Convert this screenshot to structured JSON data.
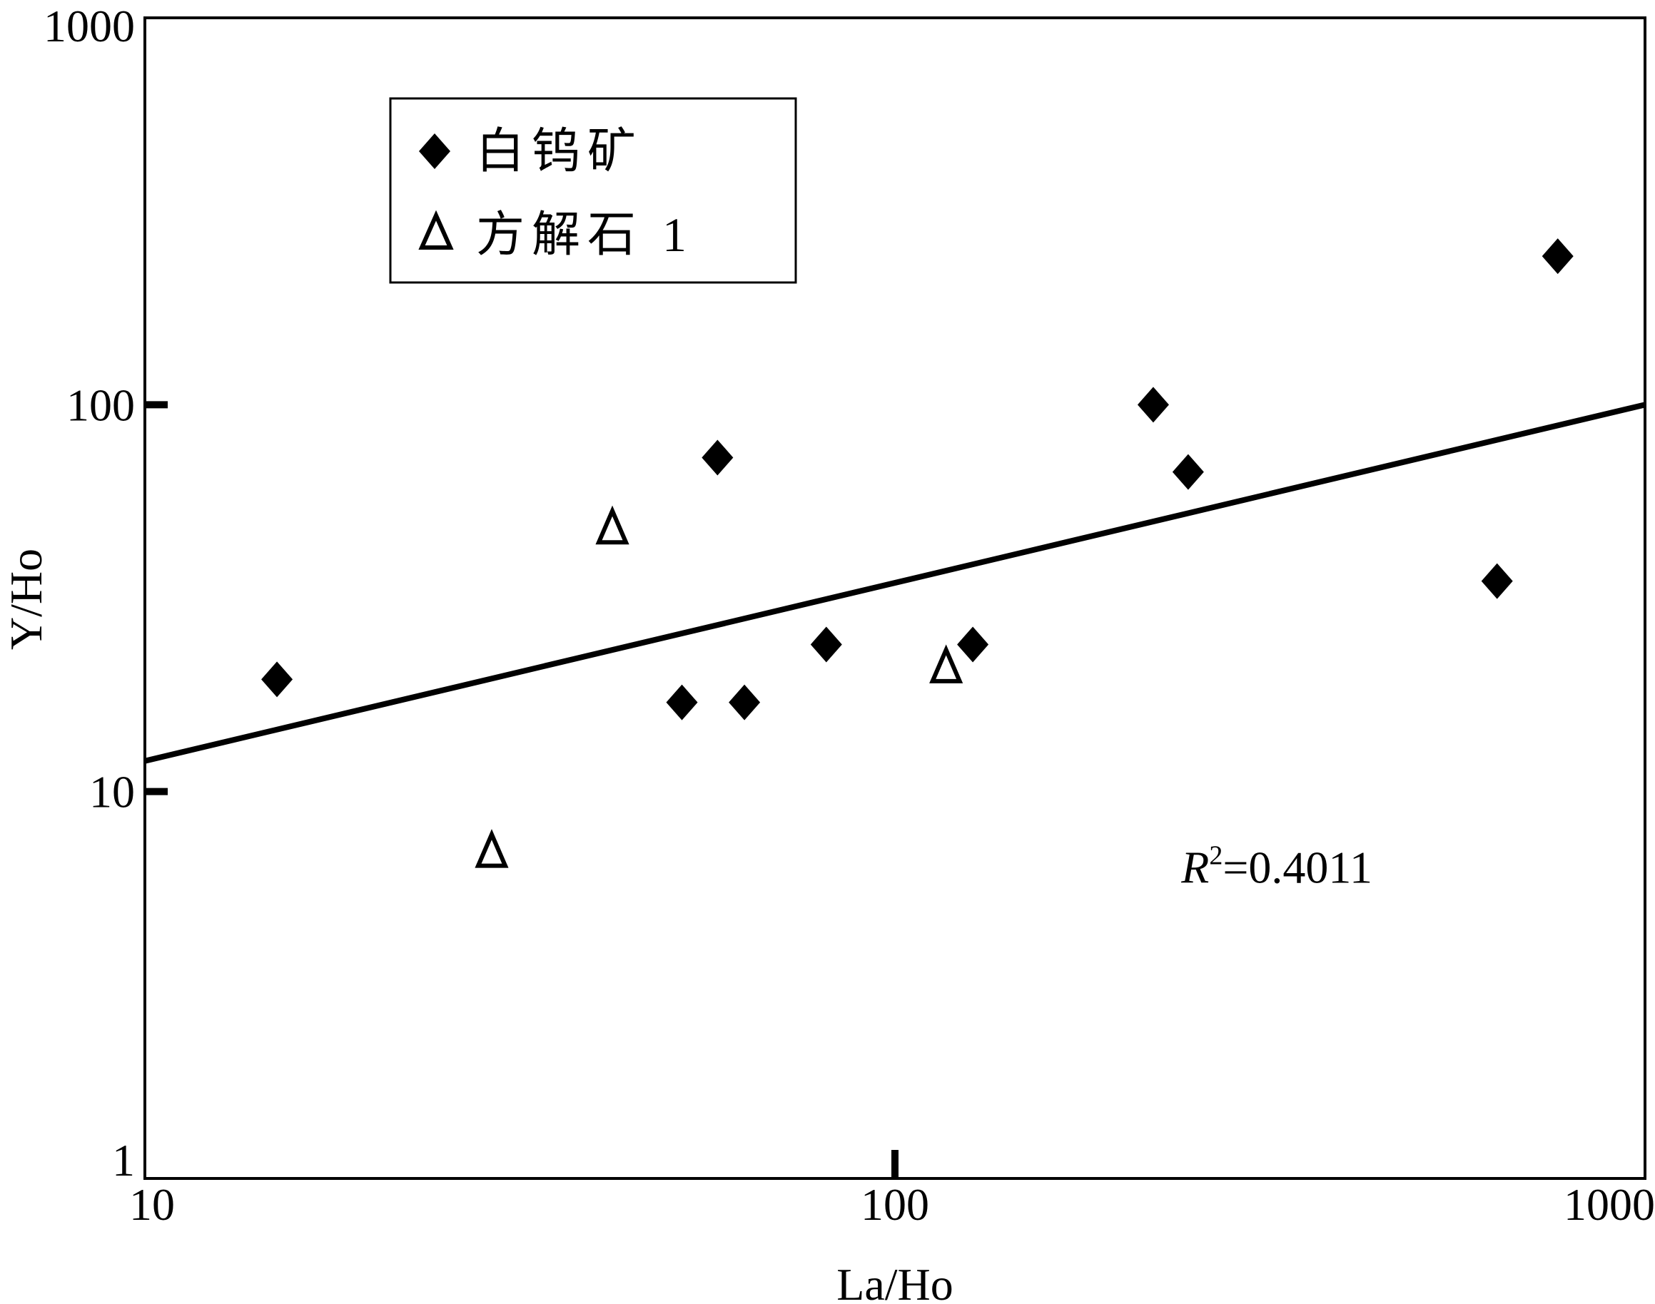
{
  "chart_data": {
    "type": "scatter",
    "xlabel": "La/Ho",
    "ylabel": "Y/Ho",
    "x_scale": "log",
    "y_scale": "log",
    "xlim": [
      10,
      1000
    ],
    "ylim": [
      1,
      1000
    ],
    "x_ticks": [
      {
        "value": 10,
        "label": "10"
      },
      {
        "value": 100,
        "label": "100"
      },
      {
        "value": 1000,
        "label": "1000"
      }
    ],
    "y_ticks": [
      {
        "value": 1,
        "label": "1"
      },
      {
        "value": 10,
        "label": "10"
      },
      {
        "value": 100,
        "label": "100"
      },
      {
        "value": 1000,
        "label": "1000"
      }
    ],
    "grid": false,
    "legend_position": "top-left",
    "series": [
      {
        "name": "白钨矿",
        "marker": "diamond-filled",
        "color": "#000000",
        "points": [
          {
            "x": 15,
            "y": 19.5
          },
          {
            "x": 52,
            "y": 17
          },
          {
            "x": 58,
            "y": 73
          },
          {
            "x": 63,
            "y": 17
          },
          {
            "x": 81,
            "y": 24
          },
          {
            "x": 127,
            "y": 24
          },
          {
            "x": 221,
            "y": 100
          },
          {
            "x": 246,
            "y": 67
          },
          {
            "x": 635,
            "y": 35
          },
          {
            "x": 765,
            "y": 242
          }
        ]
      },
      {
        "name": "方解石 1",
        "marker": "triangle-open",
        "color": "#000000",
        "points": [
          {
            "x": 29,
            "y": 7
          },
          {
            "x": 42,
            "y": 48
          },
          {
            "x": 117,
            "y": 21
          }
        ]
      }
    ],
    "trendline": {
      "type": "power",
      "from": {
        "x": 10,
        "y": 12
      },
      "to": {
        "x": 1000,
        "y": 100
      }
    },
    "annotation": {
      "r_symbol": "R",
      "exponent": "2",
      "value_text": "=0.4011",
      "x": 250,
      "y": 7
    }
  }
}
